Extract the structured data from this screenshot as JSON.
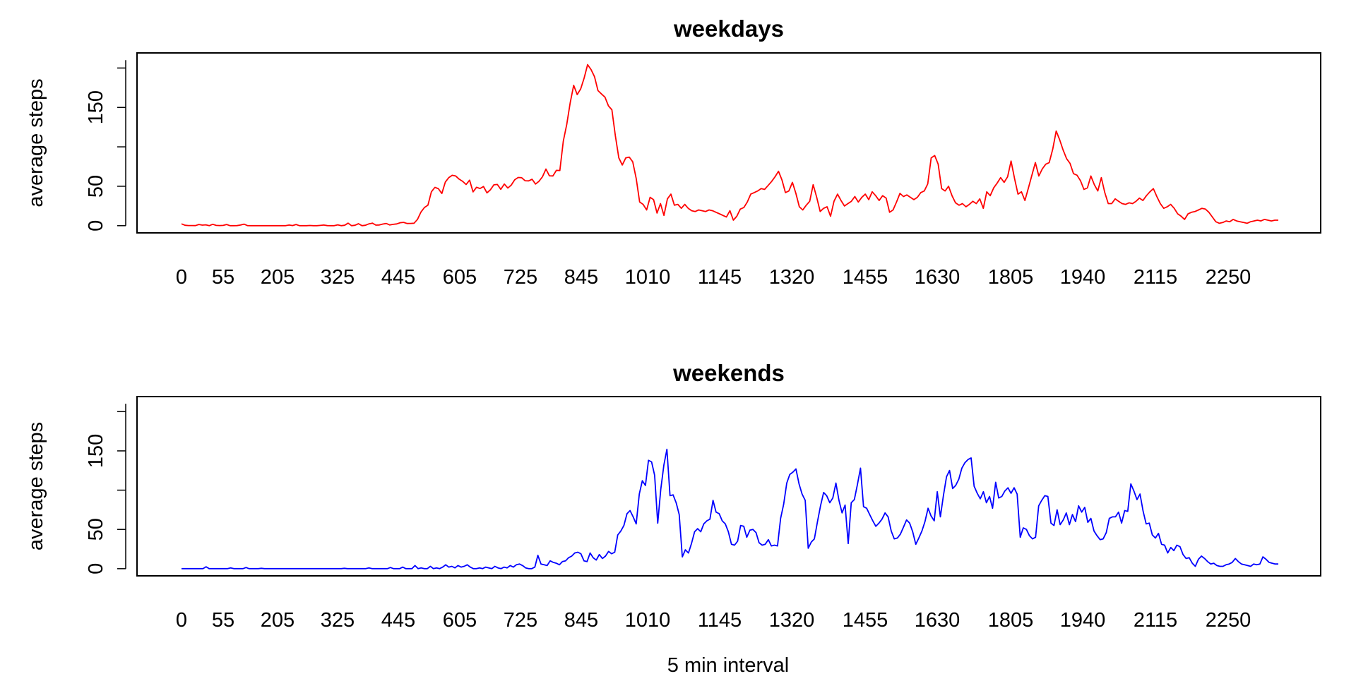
{
  "figure": {
    "xlabel": "5 min interval"
  },
  "chart_data": [
    {
      "type": "line",
      "title": "weekdays",
      "xlabel": "",
      "ylabel": "average steps",
      "color": "#ff0000",
      "ylim": [
        0,
        210
      ],
      "yticks": [
        0,
        50,
        150
      ],
      "xtick_labels": [
        "0",
        "55",
        "205",
        "325",
        "445",
        "605",
        "725",
        "845",
        "1010",
        "1145",
        "1320",
        "1455",
        "1630",
        "1805",
        "1940",
        "2115",
        "2250"
      ],
      "x_unit": "interval index (1-288, one per 5 min interval)",
      "series": [
        {
          "values": [
            2.3,
            0.5,
            0.2,
            0.2,
            0.1,
            1.5,
            0.7,
            1.1,
            0.0,
            1.8,
            0.4,
            0.2,
            0.4,
            1.5,
            0.0,
            0.0,
            0.1,
            0.8,
            2.0,
            0.1,
            0.0,
            0.0,
            0.0,
            0.0,
            0.0,
            0.0,
            0.0,
            0.0,
            0.0,
            0.0,
            0.0,
            0.8,
            0.2,
            1.5,
            0.0,
            0.0,
            0.0,
            0.3,
            0.0,
            0.0,
            0.4,
            0.8,
            0.1,
            0.0,
            0.0,
            1.1,
            0.0,
            0.5,
            3.2,
            0.0,
            0.5,
            2.5,
            0.0,
            0.5,
            2.3,
            3.2,
            0.7,
            0.9,
            2.1,
            2.8,
            0.9,
            1.7,
            2.2,
            3.8,
            4.2,
            2.8,
            2.9,
            3.1,
            8.1,
            17.4,
            23.1,
            26.0,
            43.0,
            48.6,
            46.9,
            40.8,
            55.2,
            61.0,
            63.9,
            63.0,
            59.0,
            56.2,
            52.3,
            57.7,
            42.9,
            48.7,
            47.2,
            49.7,
            41.6,
            45.6,
            51.8,
            52.3,
            46.1,
            52.8,
            47.8,
            51.5,
            58.3,
            61.1,
            60.9,
            57.0,
            56.8,
            58.9,
            52.8,
            56.4,
            62.0,
            71.8,
            63.3,
            63.1,
            70.2,
            70.0,
            107.2,
            128.5,
            156.1,
            178.0,
            166.3,
            173.5,
            187.3,
            204.3,
            198.0,
            189.0,
            171.3,
            167.0,
            163.0,
            152.0,
            147.0,
            114.0,
            86.0,
            77.0,
            86.0,
            87.0,
            81.0,
            60.0,
            30.0,
            27.0,
            20.0,
            36.0,
            33.0,
            16.0,
            28.0,
            13.0,
            34.0,
            40.0,
            26.0,
            27.0,
            22.0,
            27.0,
            22.0,
            19.0,
            18.0,
            20.0,
            19.0,
            18.0,
            20.0,
            19.0,
            17.0,
            15.0,
            13.0,
            11.0,
            19.0,
            7.0,
            12.0,
            21.0,
            23.0,
            30.0,
            40.0,
            42.0,
            44.0,
            47.0,
            46.0,
            51.0,
            56.0,
            62.0,
            69.0,
            58.0,
            42.0,
            44.0,
            55.0,
            41.0,
            24.0,
            20.0,
            26.0,
            31.0,
            52.0,
            36.0,
            18.0,
            22.0,
            24.0,
            12.0,
            31.0,
            40.0,
            32.0,
            25.0,
            28.0,
            31.0,
            37.0,
            30.0,
            36.0,
            40.0,
            33.0,
            43.0,
            38.0,
            32.0,
            38.0,
            35.0,
            17.0,
            20.0,
            30.0,
            41.0,
            37.0,
            39.0,
            36.0,
            33.0,
            36.0,
            42.0,
            44.0,
            53.0,
            86.0,
            89.0,
            78.0,
            47.0,
            44.0,
            50.0,
            38.0,
            29.0,
            26.0,
            28.0,
            24.0,
            27.0,
            31.0,
            28.0,
            34.0,
            22.0,
            43.0,
            38.0,
            48.0,
            54.0,
            61.0,
            55.0,
            62.0,
            82.0,
            60.0,
            40.0,
            43.0,
            32.0,
            48.0,
            64.0,
            80.0,
            63.0,
            72.0,
            78.0,
            80.0,
            97.0,
            120.0,
            109.0,
            96.0,
            85.0,
            79.0,
            66.0,
            64.0,
            57.0,
            46.0,
            48.0,
            63.0,
            52.0,
            44.0,
            61.0,
            42.0,
            28.0,
            28.0,
            34.0,
            31.0,
            28.0,
            27.0,
            29.0,
            28.0,
            31.0,
            35.0,
            32.0,
            38.0,
            43.0,
            47.0,
            37.0,
            28.0,
            22.0,
            24.0,
            27.0,
            22.0,
            15.0,
            12.0,
            8.0,
            15.0,
            17.0,
            18.0,
            20.0,
            22.0,
            21.0,
            17.0,
            11.0,
            5.0,
            3.0,
            4.0,
            6.0,
            5.0,
            8.0,
            6.0,
            5.0,
            4.0,
            3.0,
            5.0,
            6.0,
            7.0,
            6.0,
            8.0,
            7.0,
            6.0,
            7.0,
            7.0
          ]
        }
      ]
    },
    {
      "type": "line",
      "title": "weekends",
      "xlabel": "5 min interval",
      "ylabel": "average steps",
      "color": "#0000ff",
      "ylim": [
        0,
        210
      ],
      "yticks": [
        0,
        50,
        150
      ],
      "xtick_labels": [
        "0",
        "55",
        "205",
        "325",
        "445",
        "605",
        "725",
        "845",
        "1010",
        "1145",
        "1320",
        "1455",
        "1630",
        "1805",
        "1940",
        "2115",
        "2250"
      ],
      "x_unit": "interval index (1-288, one per 5 min interval)",
      "series": [
        {
          "values": [
            0.0,
            0.0,
            0.0,
            0.0,
            0.0,
            0.0,
            0.0,
            0.0,
            2.5,
            0.0,
            0.0,
            0.0,
            0.0,
            0.0,
            0.0,
            0.0,
            1.0,
            0.0,
            0.0,
            0.0,
            0.0,
            1.5,
            0.0,
            0.0,
            0.0,
            0.0,
            0.5,
            0.0,
            0.0,
            0.0,
            0.0,
            0.0,
            0.0,
            0.0,
            0.0,
            0.0,
            0.0,
            0.0,
            0.0,
            0.0,
            0.0,
            0.0,
            0.0,
            0.0,
            0.0,
            0.0,
            0.0,
            0.0,
            0.0,
            0.0,
            0.0,
            0.0,
            0.0,
            0.5,
            0.0,
            0.0,
            0.0,
            0.0,
            0.0,
            0.0,
            0.0,
            1.0,
            0.0,
            0.0,
            0.0,
            0.0,
            0.0,
            0.0,
            1.5,
            0.0,
            0.0,
            0.0,
            2.0,
            0.0,
            0.0,
            0.0,
            4.0,
            0.0,
            1.0,
            0.0,
            0.0,
            3.0,
            0.0,
            1.0,
            0.0,
            2.0,
            5.0,
            2.0,
            3.0,
            1.0,
            4.0,
            2.0,
            3.0,
            5.0,
            2.0,
            0.0,
            0.0,
            1.0,
            0.0,
            2.0,
            1.0,
            0.0,
            3.0,
            1.0,
            0.0,
            2.0,
            1.0,
            4.0,
            2.0,
            5.0,
            6.0,
            4.0,
            1.0,
            0.0,
            0.0,
            2.0,
            17.0,
            6.0,
            5.0,
            4.0,
            10.0,
            8.0,
            7.0,
            5.0,
            9.0,
            10.0,
            14.0,
            16.0,
            20.0,
            21.0,
            19.0,
            10.0,
            9.0,
            20.0,
            14.0,
            11.0,
            18.0,
            13.0,
            16.0,
            22.0,
            19.0,
            21.0,
            43.0,
            48.0,
            55.0,
            70.0,
            74.0,
            66.0,
            57.0,
            95.0,
            112.0,
            106.0,
            138.0,
            136.0,
            119.0,
            58.0,
            101.0,
            132.0,
            152.0,
            93.0,
            94.0,
            84.0,
            69.0,
            15.0,
            24.0,
            20.0,
            32.0,
            47.0,
            51.0,
            47.0,
            57.0,
            61.0,
            63.0,
            87.0,
            72.0,
            70.0,
            61.0,
            57.0,
            47.0,
            31.0,
            30.0,
            35.0,
            55.0,
            54.0,
            40.0,
            49.0,
            50.0,
            46.0,
            33.0,
            30.0,
            31.0,
            37.0,
            29.0,
            30.0,
            29.0,
            64.0,
            82.0,
            109.0,
            120.0,
            123.0,
            127.0,
            108.0,
            95.0,
            87.0,
            26.0,
            34.0,
            38.0,
            60.0,
            80.0,
            97.0,
            93.0,
            84.0,
            90.0,
            109.0,
            87.0,
            71.0,
            81.0,
            32.0,
            84.0,
            88.0,
            107.0,
            128.0,
            79.0,
            77.0,
            69.0,
            61.0,
            54.0,
            58.0,
            63.0,
            71.0,
            66.0,
            48.0,
            38.0,
            39.0,
            44.0,
            53.0,
            62.0,
            58.0,
            47.0,
            31.0,
            39.0,
            48.0,
            60.0,
            77.0,
            67.0,
            61.0,
            98.0,
            66.0,
            93.0,
            117.0,
            125.0,
            102.0,
            106.0,
            114.0,
            128.0,
            135.0,
            139.0,
            141.0,
            105.0,
            96.0,
            89.0,
            98.0,
            84.0,
            92.0,
            77.0,
            110.0,
            90.0,
            92.0,
            99.0,
            103.0,
            96.0,
            103.0,
            95.0,
            40.0,
            52.0,
            50.0,
            42.0,
            38.0,
            40.0,
            80.0,
            87.0,
            93.0,
            92.0,
            58.0,
            55.0,
            75.0,
            56.0,
            62.0,
            71.0,
            56.0,
            69.0,
            60.0,
            80.0,
            72.0,
            78.0,
            59.0,
            64.0,
            48.0,
            42.0,
            37.0,
            38.0,
            46.0,
            64.0,
            66.0,
            66.0,
            72.0,
            58.0,
            74.0,
            73.0,
            108.0,
            99.0,
            88.0,
            95.0,
            73.0,
            57.0,
            58.0,
            43.0,
            39.0,
            45.0,
            31.0,
            30.0,
            20.0,
            27.0,
            23.0,
            30.0,
            28.0,
            18.0,
            13.0,
            14.0,
            7.0,
            3.0,
            12.0,
            16.0,
            13.0,
            9.0,
            6.0,
            7.0,
            4.0,
            3.0,
            3.0,
            5.0,
            6.0,
            8.0,
            13.0,
            9.0,
            6.0,
            5.0,
            4.0,
            3.0,
            6.0,
            5.0,
            6.0,
            15.0,
            12.0,
            8.0,
            7.0,
            6.0,
            6.0
          ]
        }
      ]
    }
  ]
}
